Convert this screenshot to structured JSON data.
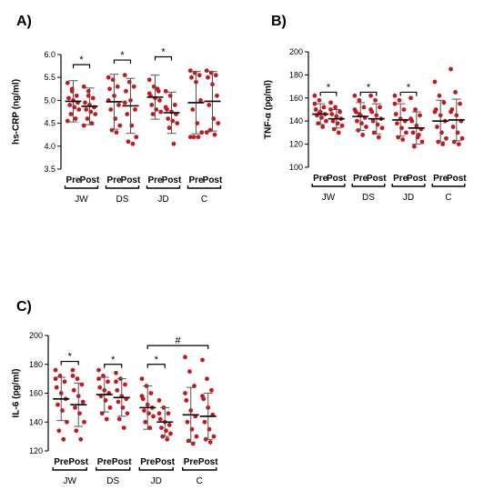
{
  "chart_data": [
    {
      "type": "scatter",
      "panel": "A)",
      "ylabel": "hs-CRP (ng/ml)",
      "ylim": [
        3.5,
        6.0
      ],
      "yticks": [
        "3.5",
        "4.0",
        "4.5",
        "5.0",
        "5.5",
        "6.0"
      ],
      "x_labels": [
        "Pre",
        "Post"
      ],
      "groups": [
        {
          "name": "JW",
          "pre": {
            "mean": 4.98,
            "sd": 0.45,
            "points": [
              5.38,
              5.2,
              5.1,
              5.05,
              5.0,
              4.95,
              4.9,
              4.85,
              4.8,
              4.7,
              4.6,
              4.55,
              5.25
            ]
          },
          "post": {
            "mean": 4.87,
            "sd": 0.4,
            "points": [
              5.3,
              5.2,
              5.05,
              4.95,
              4.9,
              4.85,
              4.8,
              4.75,
              4.7,
              4.6,
              4.5,
              4.45,
              5.1
            ]
          }
        },
        {
          "name": "DS",
          "pre": {
            "mean": 4.97,
            "sd": 0.6,
            "points": [
              5.5,
              5.45,
              5.3,
              5.25,
              5.1,
              4.9,
              4.8,
              4.6,
              4.45,
              4.35,
              4.3,
              5.0
            ]
          },
          "post": {
            "mean": 4.88,
            "sd": 0.6,
            "points": [
              5.55,
              5.4,
              5.3,
              5.2,
              5.0,
              4.8,
              4.7,
              4.45,
              4.2,
              4.1,
              4.05,
              4.95
            ]
          }
        },
        {
          "name": "JD",
          "pre": {
            "mean": 5.07,
            "sd": 0.48,
            "points": [
              5.45,
              5.3,
              5.2,
              5.1,
              5.05,
              5.0,
              4.9,
              4.8,
              4.75,
              4.7,
              5.25,
              5.15
            ]
          },
          "post": {
            "mean": 4.73,
            "sd": 0.45,
            "points": [
              5.2,
              5.1,
              4.9,
              4.8,
              4.75,
              4.7,
              4.6,
              4.55,
              4.5,
              4.4,
              4.05,
              4.85
            ]
          }
        },
        {
          "name": "C",
          "pre": {
            "mean": 4.95,
            "sd": 0.68,
            "points": [
              5.65,
              5.6,
              5.55,
              5.5,
              5.4,
              5.0,
              4.8,
              4.5,
              4.3,
              4.2,
              4.2,
              4.2
            ]
          },
          "post": {
            "mean": 4.98,
            "sd": 0.65,
            "points": [
              5.65,
              5.6,
              5.55,
              5.5,
              5.35,
              5.1,
              4.9,
              4.6,
              4.5,
              4.35,
              4.25,
              4.3
            ]
          }
        }
      ],
      "brackets": [
        {
          "from_group": 0,
          "to_group": 0,
          "label": "*",
          "y": 5.78
        },
        {
          "from_group": 1,
          "to_group": 1,
          "label": "*",
          "y": 5.88
        },
        {
          "from_group": 2,
          "to_group": 2,
          "label": "*",
          "y": 5.95
        }
      ]
    },
    {
      "type": "scatter",
      "panel": "B)",
      "ylabel": "TNF-α (pg/ml)",
      "ylim": [
        100,
        200
      ],
      "yticks": [
        "100",
        "120",
        "140",
        "160",
        "180",
        "200"
      ],
      "x_labels": [
        "Pre",
        "Post"
      ],
      "groups": [
        {
          "name": "JW",
          "pre": {
            "mean": 146,
            "sd": 9,
            "points": [
              162,
              158,
              152,
              150,
              148,
              146,
              145,
              143,
              140,
              138,
              135,
              155,
              147
            ]
          },
          "post": {
            "mean": 142,
            "sd": 8,
            "points": [
              156,
              152,
              148,
              146,
              144,
              142,
              140,
              138,
              136,
              133,
              130,
              150
            ]
          }
        },
        {
          "name": "DS",
          "pre": {
            "mean": 144,
            "sd": 12,
            "points": [
              162,
              158,
              152,
              148,
              145,
              143,
              140,
              138,
              135,
              132,
              128,
              150,
              146
            ]
          },
          "post": {
            "mean": 142,
            "sd": 13,
            "points": [
              162,
              158,
              152,
              148,
              145,
              142,
              140,
              137,
              134,
              130,
              126,
              150
            ]
          }
        },
        {
          "name": "JD",
          "pre": {
            "mean": 141,
            "sd": 14,
            "points": [
              162,
              158,
              150,
              146,
              142,
              140,
              138,
              134,
              130,
              126,
              124,
              155
            ]
          },
          "post": {
            "mean": 134,
            "sd": 14,
            "points": [
              160,
              150,
              145,
              140,
              136,
              133,
              130,
              126,
              122,
              118,
              128,
              142
            ]
          }
        },
        {
          "name": "C",
          "pre": {
            "mean": 140,
            "sd": 18,
            "points": [
              174,
              162,
              156,
              150,
              145,
              140,
              135,
              130,
              125,
              122,
              120,
              148
            ]
          },
          "post": {
            "mean": 141,
            "sd": 18,
            "points": [
              185,
              165,
              155,
              150,
              145,
              140,
              135,
              130,
              125,
              122,
              120,
              148
            ]
          }
        }
      ],
      "brackets": [
        {
          "from_group": 0,
          "to_group": 0,
          "label": "*",
          "y": 165
        },
        {
          "from_group": 1,
          "to_group": 1,
          "label": "*",
          "y": 165
        },
        {
          "from_group": 2,
          "to_group": 2,
          "label": "*",
          "y": 165
        }
      ]
    },
    {
      "type": "scatter",
      "panel": "C)",
      "ylabel": "IL-6 (pg/ml)",
      "ylim": [
        120,
        200
      ],
      "yticks": [
        "120",
        "140",
        "160",
        "180",
        "200"
      ],
      "x_labels": [
        "Pre",
        "Post"
      ],
      "groups": [
        {
          "name": "JW",
          "pre": {
            "mean": 156,
            "sd": 15,
            "points": [
              176,
              172,
              168,
              164,
              160,
              156,
              152,
              148,
              140,
              134,
              128,
              170
            ]
          },
          "post": {
            "mean": 152,
            "sd": 15,
            "points": [
              176,
              170,
              166,
              162,
              158,
              154,
              150,
              146,
              140,
              134,
              128,
              172
            ]
          }
        },
        {
          "name": "DS",
          "pre": {
            "mean": 159,
            "sd": 12,
            "points": [
              176,
              172,
              168,
              164,
              162,
              160,
              158,
              155,
              150,
              146,
              142,
              170
            ]
          },
          "post": {
            "mean": 157,
            "sd": 13,
            "points": [
              174,
              170,
              166,
              162,
              158,
              156,
              154,
              150,
              146,
              142,
              136,
              168
            ]
          }
        },
        {
          "name": "JD",
          "pre": {
            "mean": 150,
            "sd": 15,
            "points": [
              170,
              165,
              160,
              156,
              152,
              150,
              148,
              146,
              144,
              140,
              136,
              158
            ]
          },
          "post": {
            "mean": 140,
            "sd": 10,
            "points": [
              155,
              150,
              146,
              142,
              140,
              138,
              136,
              134,
              132,
              130,
              128,
              146
            ]
          }
        },
        {
          "name": "C",
          "pre": {
            "mean": 145,
            "sd": 19,
            "points": [
              185,
              175,
              165,
              155,
              148,
              144,
              140,
              135,
              130,
              127,
              125,
              160
            ]
          },
          "post": {
            "mean": 144,
            "sd": 16,
            "points": [
              183,
              170,
              162,
              156,
              150,
              145,
              140,
              135,
              130,
              128,
              126,
              158
            ]
          }
        }
      ],
      "brackets": [
        {
          "from_group": 0,
          "to_group": 0,
          "label": "*",
          "y": 182
        },
        {
          "from_group": 1,
          "to_group": 1,
          "label": "*",
          "y": 180
        },
        {
          "from_group": 2,
          "to_group": 2,
          "label": "*",
          "y": 180
        },
        {
          "from_group": 2,
          "to_group": 3,
          "label": "#",
          "y": 193
        }
      ]
    }
  ],
  "colors": {
    "point": "#c8161d",
    "errorbar": "#555555",
    "mean": "#000000",
    "axis": "#000000"
  }
}
